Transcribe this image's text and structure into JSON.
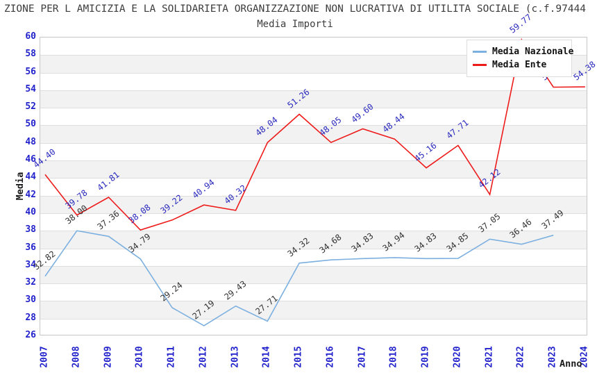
{
  "header": {
    "title": "ZIONE PER L AMICIZIA E LA SOLIDARIETA ORGANIZZAZIONE NON LUCRATIVA DI UTILITA SOCIALE (c.f.97444",
    "subtitle": "Media Importi"
  },
  "legend": {
    "items": [
      {
        "label": "Media Nazionale",
        "color": "#7cb0e0"
      },
      {
        "label": "Media Ente",
        "color": "#ee1b1b"
      }
    ]
  },
  "axes": {
    "y_title": "Media",
    "x_title": "Anno",
    "y_ticks": [
      26,
      28,
      30,
      32,
      34,
      36,
      38,
      40,
      42,
      44,
      46,
      48,
      50,
      52,
      54,
      56,
      58,
      60
    ],
    "tick_color": "#2222cc"
  },
  "chart_data": {
    "type": "line",
    "title": "Media Importi",
    "xlabel": "Anno",
    "ylabel": "Media",
    "ylim": [
      26,
      60
    ],
    "ytick_step": 2,
    "grid": "horizontal-bands",
    "legend_position": "top-right",
    "x": [
      2007,
      2008,
      2009,
      2010,
      2011,
      2012,
      2013,
      2014,
      2015,
      2016,
      2017,
      2018,
      2019,
      2020,
      2021,
      2022,
      2023,
      2024
    ],
    "series": [
      {
        "name": "Media Nazionale",
        "color": "#7cb0e0",
        "label_color": "#333333",
        "values": [
          32.82,
          38.0,
          37.36,
          34.79,
          29.24,
          27.19,
          29.43,
          27.71,
          34.32,
          34.68,
          34.83,
          34.94,
          34.83,
          34.85,
          37.05,
          36.46,
          37.49,
          null
        ]
      },
      {
        "name": "Media Ente",
        "color": "#ee1b1b",
        "label_color": "#2a2abe",
        "values": [
          44.4,
          39.78,
          41.81,
          38.08,
          39.22,
          40.94,
          40.32,
          48.04,
          51.26,
          48.05,
          49.6,
          48.44,
          45.16,
          47.71,
          42.12,
          59.77,
          54.35,
          54.38
        ]
      }
    ]
  },
  "colors": {
    "band_gray": "#f2f2f2",
    "gridline": "#dedede",
    "plot_border": "#c6c6c6",
    "title_text": "#3c3c3c"
  }
}
